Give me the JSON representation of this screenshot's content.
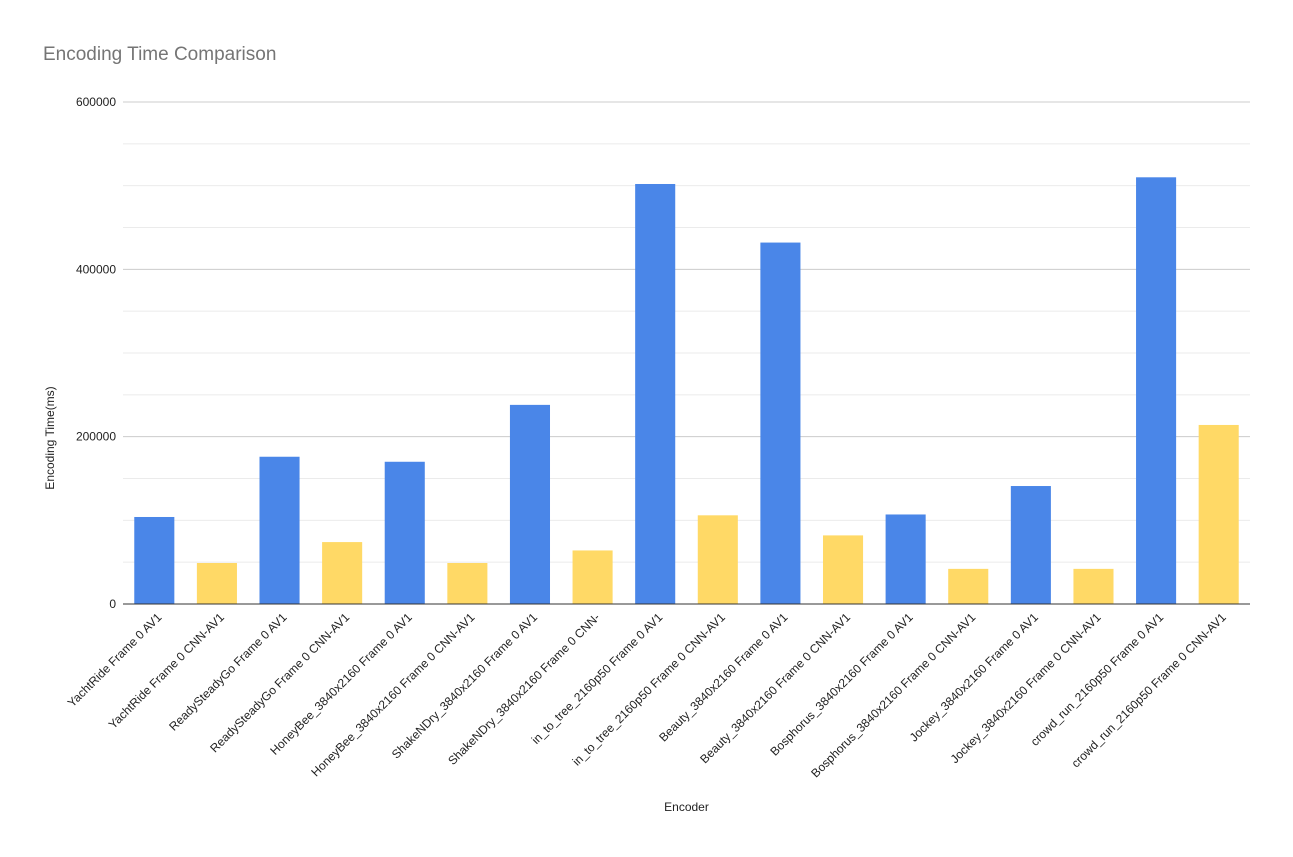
{
  "colors": {
    "av1": "#4a86e8",
    "cnn_av1": "#ffd966",
    "title": "#757575",
    "major_grid": "#cccccc",
    "minor_grid": "#ebebeb",
    "baseline": "#333333"
  },
  "chart_data": {
    "type": "bar",
    "title": "Encoding Time Comparison",
    "xlabel": "Encoder",
    "ylabel": "Encoding Time(ms)",
    "ylim": [
      0,
      600000
    ],
    "yticks": [
      "0",
      "200000",
      "400000",
      "600000"
    ],
    "grid": true,
    "legend": "none",
    "categories": [
      "YachtRide Frame 0 AV1",
      "YachtRide Frame 0 CNN-AV1",
      "ReadySteadyGo Frame 0 AV1",
      "ReadySteadyGo Frame 0 CNN-AV1",
      "HoneyBee_3840x2160 Frame 0 AV1",
      "HoneyBee_3840x2160 Frame 0 CNN-AV1",
      "ShakeNDry_3840x2160 Frame 0 AV1",
      "ShakeNDry_3840x2160 Frame 0 CNN-",
      "in_to_tree_2160p50 Frame 0 AV1",
      "in_to_tree_2160p50 Frame 0 CNN-AV1",
      "Beauty_3840x2160 Frame 0 AV1",
      "Beauty_3840x2160 Frame 0 CNN-AV1",
      "Bosphorus_3840x2160 Frame 0 AV1",
      "Bosphorus_3840x2160 Frame 0 CNN-AV1",
      "Jockey_3840x2160 Frame 0 AV1",
      "Jockey_3840x2160 Frame 0 CNN-AV1",
      "crowd_run_2160p50 Frame 0 AV1",
      "crowd_run_2160p50 Frame 0 CNN-AV1"
    ],
    "values": [
      104000,
      49000,
      176000,
      74000,
      170000,
      49000,
      238000,
      64000,
      502000,
      106000,
      432000,
      82000,
      107000,
      42000,
      141000,
      42000,
      510000,
      214000
    ],
    "bar_color_keys": [
      "av1",
      "cnn_av1",
      "av1",
      "cnn_av1",
      "av1",
      "cnn_av1",
      "av1",
      "cnn_av1",
      "av1",
      "cnn_av1",
      "av1",
      "cnn_av1",
      "av1",
      "cnn_av1",
      "av1",
      "cnn_av1",
      "av1",
      "cnn_av1"
    ]
  }
}
